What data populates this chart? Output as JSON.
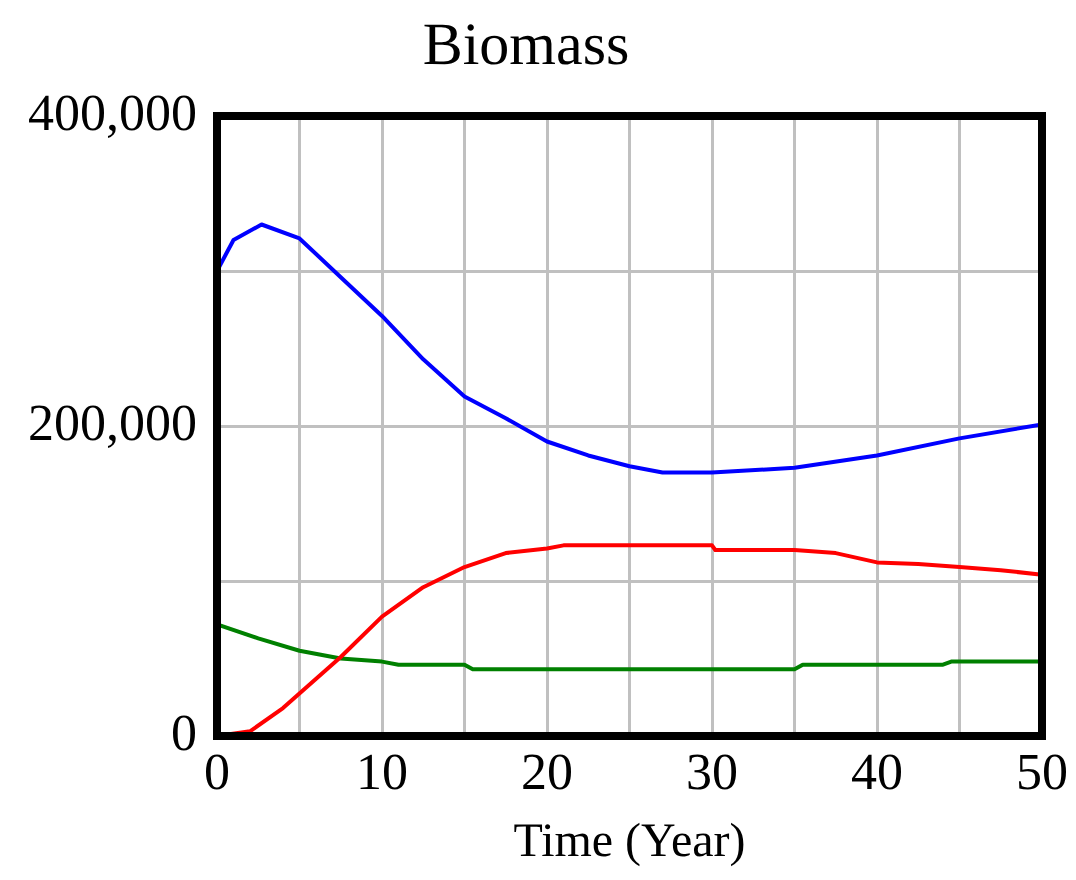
{
  "chart_data": {
    "type": "line",
    "title": "Biomass",
    "xlabel": "Time (Year)",
    "xlim": [
      0,
      50
    ],
    "xticks": [
      0,
      {
        "value": 5,
        "label": null
      },
      10,
      {
        "value": 15,
        "label": null
      },
      20,
      {
        "value": 25,
        "label": null
      },
      30,
      {
        "value": 35,
        "label": null
      },
      40,
      {
        "value": 45,
        "label": null
      },
      50
    ],
    "ylim": [
      0,
      400000
    ],
    "yticks": [
      {
        "value": 0,
        "label": "0"
      },
      {
        "value": 100000,
        "label": null
      },
      {
        "value": 200000,
        "label": "200,000"
      },
      {
        "value": 300000,
        "label": null
      },
      {
        "value": 400000,
        "label": "400,000"
      }
    ],
    "grid": true,
    "legend": false,
    "marker": "none",
    "line_style": "solid",
    "series": [
      {
        "color": "#0000ff",
        "x": [
          0,
          1,
          2.7,
          5,
          7.5,
          10,
          12.5,
          15,
          17.5,
          20,
          22.5,
          25,
          27,
          30,
          35,
          40,
          45,
          50
        ],
        "values": [
          300000,
          320000,
          330000,
          321000,
          296000,
          271000,
          243000,
          219000,
          205000,
          190000,
          181000,
          174000,
          170000,
          170000,
          173000,
          181000,
          192000,
          201000
        ]
      },
      {
        "color": "#ff0000",
        "x": [
          0,
          2,
          4,
          7.5,
          10,
          12.5,
          15,
          17.5,
          20,
          21,
          30,
          30.2,
          35,
          37.5,
          40,
          42.5,
          45,
          47.5,
          50
        ],
        "values": [
          0,
          3000,
          18000,
          51000,
          77000,
          96000,
          109000,
          118000,
          121000,
          123000,
          123000,
          120000,
          120000,
          118000,
          112000,
          111000,
          109000,
          107000,
          104000
        ]
      },
      {
        "color": "#008000",
        "x": [
          0,
          2.5,
          5,
          7.5,
          10,
          11,
          15,
          15.5,
          35,
          35.5,
          44,
          44.5,
          50
        ],
        "values": [
          72000,
          63000,
          55000,
          50000,
          48000,
          46000,
          46000,
          43000,
          43000,
          46000,
          46000,
          48000,
          48000
        ]
      }
    ]
  }
}
